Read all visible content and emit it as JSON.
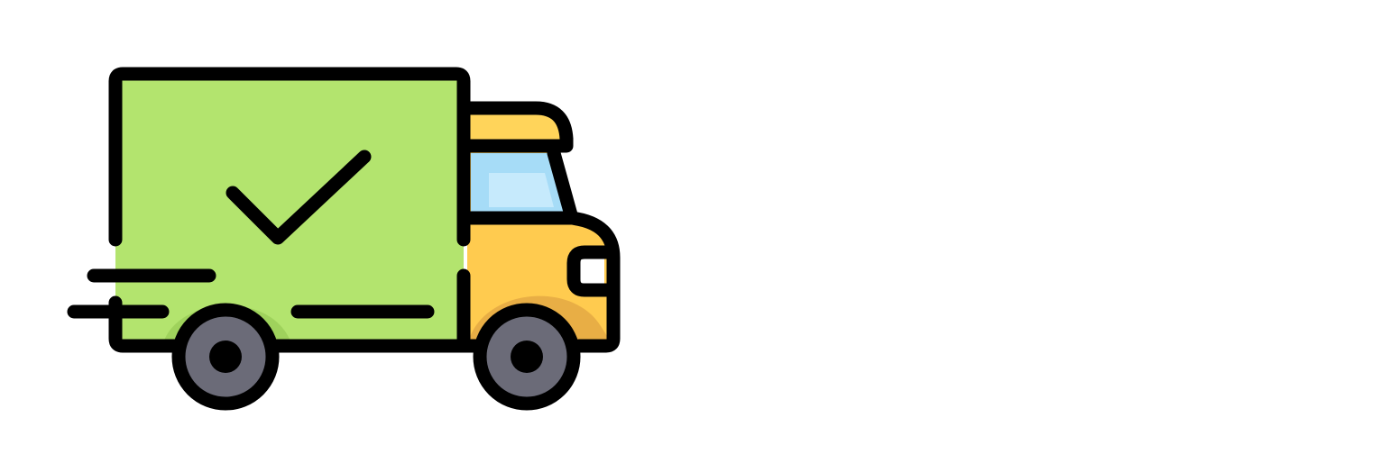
{
  "icon": {
    "name": "delivery-truck-check-icon",
    "colors": {
      "cargo_box": "#b3e46e",
      "cargo_box_shade": "#9fd25c",
      "cab": "#ffcb4f",
      "cab_shade": "#e8ae45",
      "cab_roof": "#ffd45a",
      "window": "#a6dcf7",
      "window_highlight": "#c6eafc",
      "wheel": "#6b6b78",
      "outline": "#000000"
    }
  }
}
